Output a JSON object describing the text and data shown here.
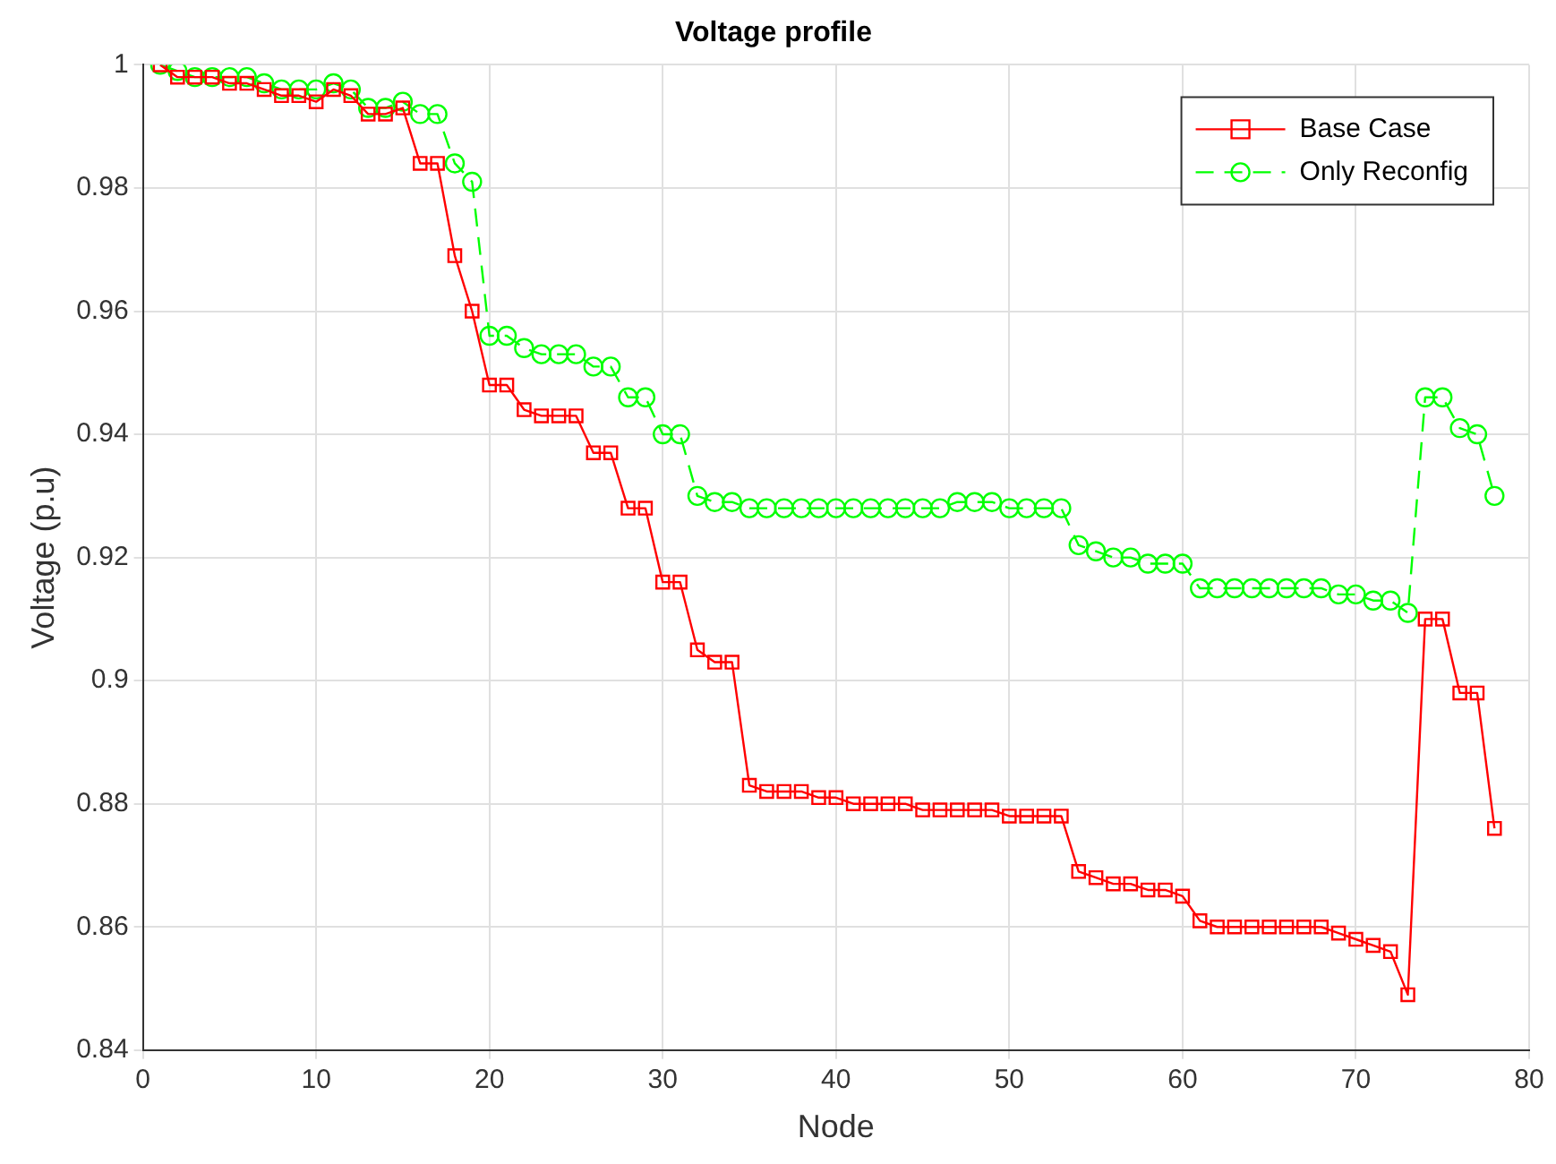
{
  "chart_data": {
    "type": "line",
    "title": "Voltage profile",
    "xlabel": "Node",
    "ylabel": "Voltage (p.u)",
    "x": [
      1,
      2,
      3,
      4,
      5,
      6,
      7,
      8,
      9,
      10,
      11,
      12,
      13,
      14,
      15,
      16,
      17,
      18,
      19,
      20,
      21,
      22,
      23,
      24,
      25,
      26,
      27,
      28,
      29,
      30,
      31,
      32,
      33,
      34,
      35,
      36,
      37,
      38,
      39,
      40,
      41,
      42,
      43,
      44,
      45,
      46,
      47,
      48,
      49,
      50,
      51,
      52,
      53,
      54,
      55,
      56,
      57,
      58,
      59,
      60,
      61,
      62,
      63,
      64,
      65,
      66,
      67,
      68,
      69,
      70,
      71,
      72,
      73,
      74,
      75,
      76,
      77,
      78
    ],
    "series": [
      {
        "name": "Base Case",
        "color": "#ff0000",
        "marker": "square",
        "line_style": "solid",
        "values": [
          1.0,
          0.998,
          0.998,
          0.998,
          0.997,
          0.997,
          0.996,
          0.995,
          0.995,
          0.994,
          0.996,
          0.995,
          0.992,
          0.992,
          0.993,
          0.984,
          0.984,
          0.969,
          0.96,
          0.948,
          0.948,
          0.944,
          0.943,
          0.943,
          0.943,
          0.937,
          0.937,
          0.928,
          0.928,
          0.916,
          0.916,
          0.905,
          0.903,
          0.903,
          0.883,
          0.882,
          0.882,
          0.882,
          0.881,
          0.881,
          0.88,
          0.88,
          0.88,
          0.88,
          0.879,
          0.879,
          0.879,
          0.879,
          0.879,
          0.878,
          0.878,
          0.878,
          0.878,
          0.869,
          0.868,
          0.867,
          0.867,
          0.866,
          0.866,
          0.865,
          0.861,
          0.86,
          0.86,
          0.86,
          0.86,
          0.86,
          0.86,
          0.86,
          0.859,
          0.858,
          0.857,
          0.856,
          0.849,
          0.91,
          0.91,
          0.898,
          0.898,
          0.876
        ]
      },
      {
        "name": "Only Reconfig",
        "color": "#00ff00",
        "marker": "circle",
        "line_style": "dashed",
        "values": [
          1.0,
          0.999,
          0.998,
          0.998,
          0.998,
          0.998,
          0.997,
          0.996,
          0.996,
          0.996,
          0.997,
          0.996,
          0.993,
          0.993,
          0.994,
          0.992,
          0.992,
          0.984,
          0.981,
          0.956,
          0.956,
          0.954,
          0.953,
          0.953,
          0.953,
          0.951,
          0.951,
          0.946,
          0.946,
          0.94,
          0.94,
          0.93,
          0.929,
          0.929,
          0.928,
          0.928,
          0.928,
          0.928,
          0.928,
          0.928,
          0.928,
          0.928,
          0.928,
          0.928,
          0.928,
          0.928,
          0.929,
          0.929,
          0.929,
          0.928,
          0.928,
          0.928,
          0.928,
          0.922,
          0.921,
          0.92,
          0.92,
          0.919,
          0.919,
          0.919,
          0.915,
          0.915,
          0.915,
          0.915,
          0.915,
          0.915,
          0.915,
          0.915,
          0.914,
          0.914,
          0.913,
          0.913,
          0.911,
          0.946,
          0.946,
          0.941,
          0.94,
          0.93
        ]
      }
    ],
    "xlim": [
      0,
      80
    ],
    "xticks": [
      0,
      10,
      20,
      30,
      40,
      50,
      60,
      70,
      80
    ],
    "ylim": [
      0.84,
      1
    ],
    "yticks": [
      0.84,
      0.86,
      0.88,
      0.9,
      0.92,
      0.94,
      0.96,
      0.98,
      1
    ],
    "grid": true,
    "legend": "top right"
  }
}
